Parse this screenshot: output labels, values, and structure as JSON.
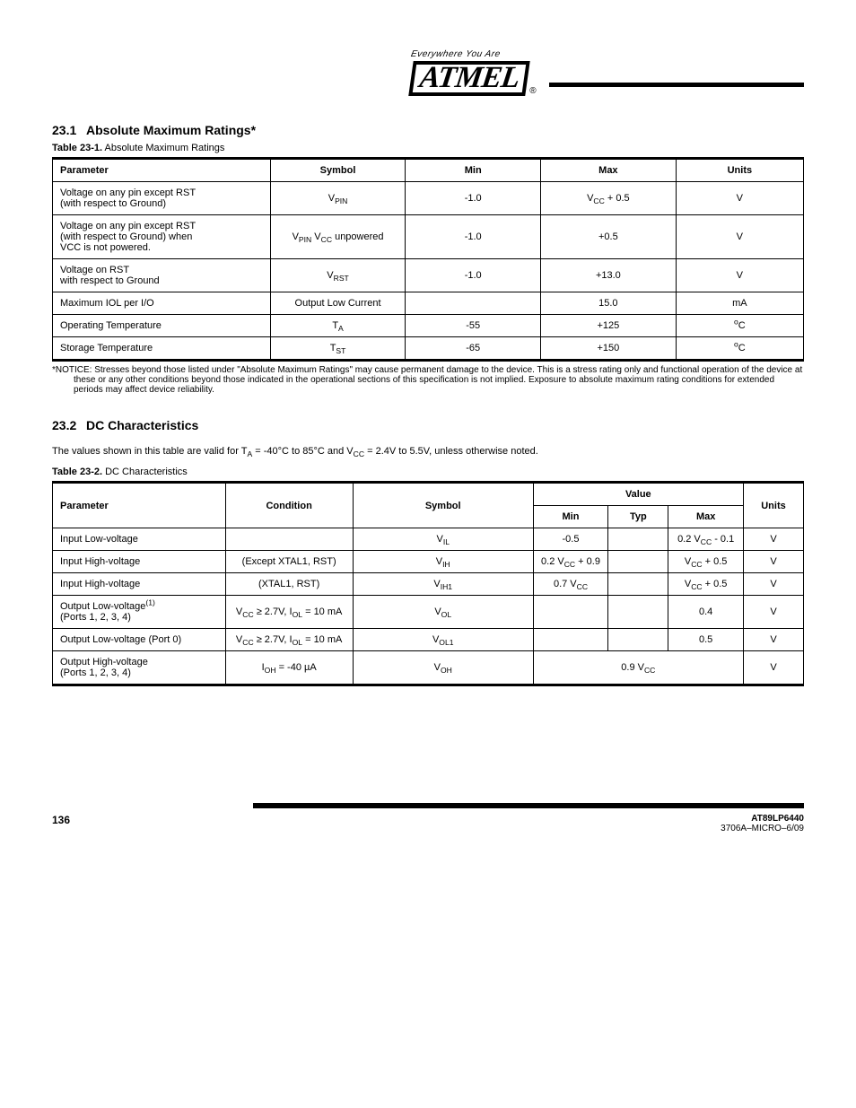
{
  "logo": {
    "caption": "Everywhere You Are",
    "text": "ATMEL",
    "reg": "®"
  },
  "section1": {
    "num": "23.1",
    "title": "Absolute Maximum Ratings*",
    "table_label": "Table 23-1.",
    "table_title": "Absolute Maximum Ratings",
    "headers": [
      "Parameter",
      "Symbol",
      "Min",
      "Max",
      "Units"
    ],
    "rows": [
      {
        "param": "Voltage on any pin except RST\n(with respect to Ground)",
        "sym_html": "V<sub>PIN</sub>",
        "min": "-1.0",
        "max_html": "V<sub>CC</sub> + 0.5",
        "units": "V"
      },
      {
        "param": "Voltage on any pin except RST\n(with respect to Ground) when\nVCC is not powered.",
        "sym_html": "V<sub>PIN</sub> V<sub>CC</sub> unpowered",
        "min": "-1.0",
        "max": "+0.5",
        "units": "V"
      },
      {
        "param": "Voltage on RST\nwith respect to Ground",
        "sym_html": "V<sub>RST</sub>",
        "min": "-1.0",
        "max": "+13.0",
        "units": "V"
      },
      {
        "param": "Maximum IOL per I/O",
        "sym": "Output Low Current",
        "min": "",
        "max": "15.0",
        "units": "mA"
      },
      {
        "param": "Operating Temperature",
        "sym_html": "T<sub>A</sub>",
        "min": "-55",
        "max": "+125",
        "units_html": "<sup>o</sup>C"
      },
      {
        "param": "Storage Temperature",
        "sym_html": "T<sub>ST</sub>",
        "min": "-65",
        "max": "+150",
        "units_html": "<sup>o</sup>C"
      }
    ],
    "note": "*NOTICE: Stresses beyond those listed under \"Absolute Maximum Ratings\" may cause permanent damage to the device. This is a stress rating only and functional operation of the device at these or any other conditions beyond those indicated in the operational sections of this specification is not implied. Exposure to absolute maximum rating conditions for extended periods may affect device reliability."
  },
  "section2": {
    "num": "23.2",
    "title": "DC Characteristics",
    "intro_html": "The values shown in this table are valid for T<sub>A</sub> = -40°C to 85°C and V<sub>CC</sub> = 2.4V to 5.5V, unless otherwise noted.",
    "table_label": "Table 23-2.",
    "table_title": "DC Characteristics",
    "head": {
      "param": "Parameter",
      "cond": "Condition",
      "sym": "Symbol",
      "value": "Value",
      "min": "Min",
      "typ": "Typ",
      "max": "Max",
      "units": "Units"
    },
    "rows": [
      {
        "param": "Input Low-voltage",
        "cond": "",
        "sym_html": "V<sub>IL</sub>",
        "min": "-0.5",
        "typ": "",
        "max_html": "0.2 V<sub>CC</sub> - 0.1",
        "units": "V"
      },
      {
        "param": "Input High-voltage",
        "cond": "(Except XTAL1, RST)",
        "sym_html": "V<sub>IH</sub>",
        "min_html": "0.2 V<sub>CC</sub> + 0.9",
        "typ": "",
        "max_html": "V<sub>CC</sub> + 0.5",
        "units": "V"
      },
      {
        "param": "Input High-voltage",
        "cond": "(XTAL1, RST)",
        "sym_html": "V<sub>IH1</sub>",
        "min_html": "0.7 V<sub>CC</sub>",
        "typ": "",
        "max_html": "V<sub>CC</sub> + 0.5",
        "units": "V"
      },
      {
        "param": "Output Low-voltage<sup>(1)</sup>\n(Ports 1, 2, 3, 4)",
        "cond_html": "V<sub>CC</sub> ≥ 2.7V, I<sub>OL</sub> = 10 mA",
        "sym_html": "V<sub>OL</sub>",
        "min": "",
        "typ": "",
        "max": "0.4",
        "units": "V"
      },
      {
        "param": "Output Low-voltage (Port 0)",
        "cond_html": "V<sub>CC</sub> ≥ 2.7V, I<sub>OL</sub> = 10 mA",
        "sym_html": "V<sub>OL1</sub>",
        "min": "",
        "typ": "",
        "max": "0.5",
        "units": "V"
      },
      {
        "param": "Output High-voltage\n(Ports 1, 2, 3, 4)",
        "cond_html": "I<sub>OH</sub> = -40 µA",
        "sym_html": "V<sub>OH</sub>",
        "min_colspan3_html": "0.9 V<sub>CC</sub>",
        "units": "V"
      }
    ]
  },
  "footer": {
    "page": "136",
    "doc_top": "AT89LP6440",
    "doc_bot": "3706A–MICRO–6/09"
  }
}
